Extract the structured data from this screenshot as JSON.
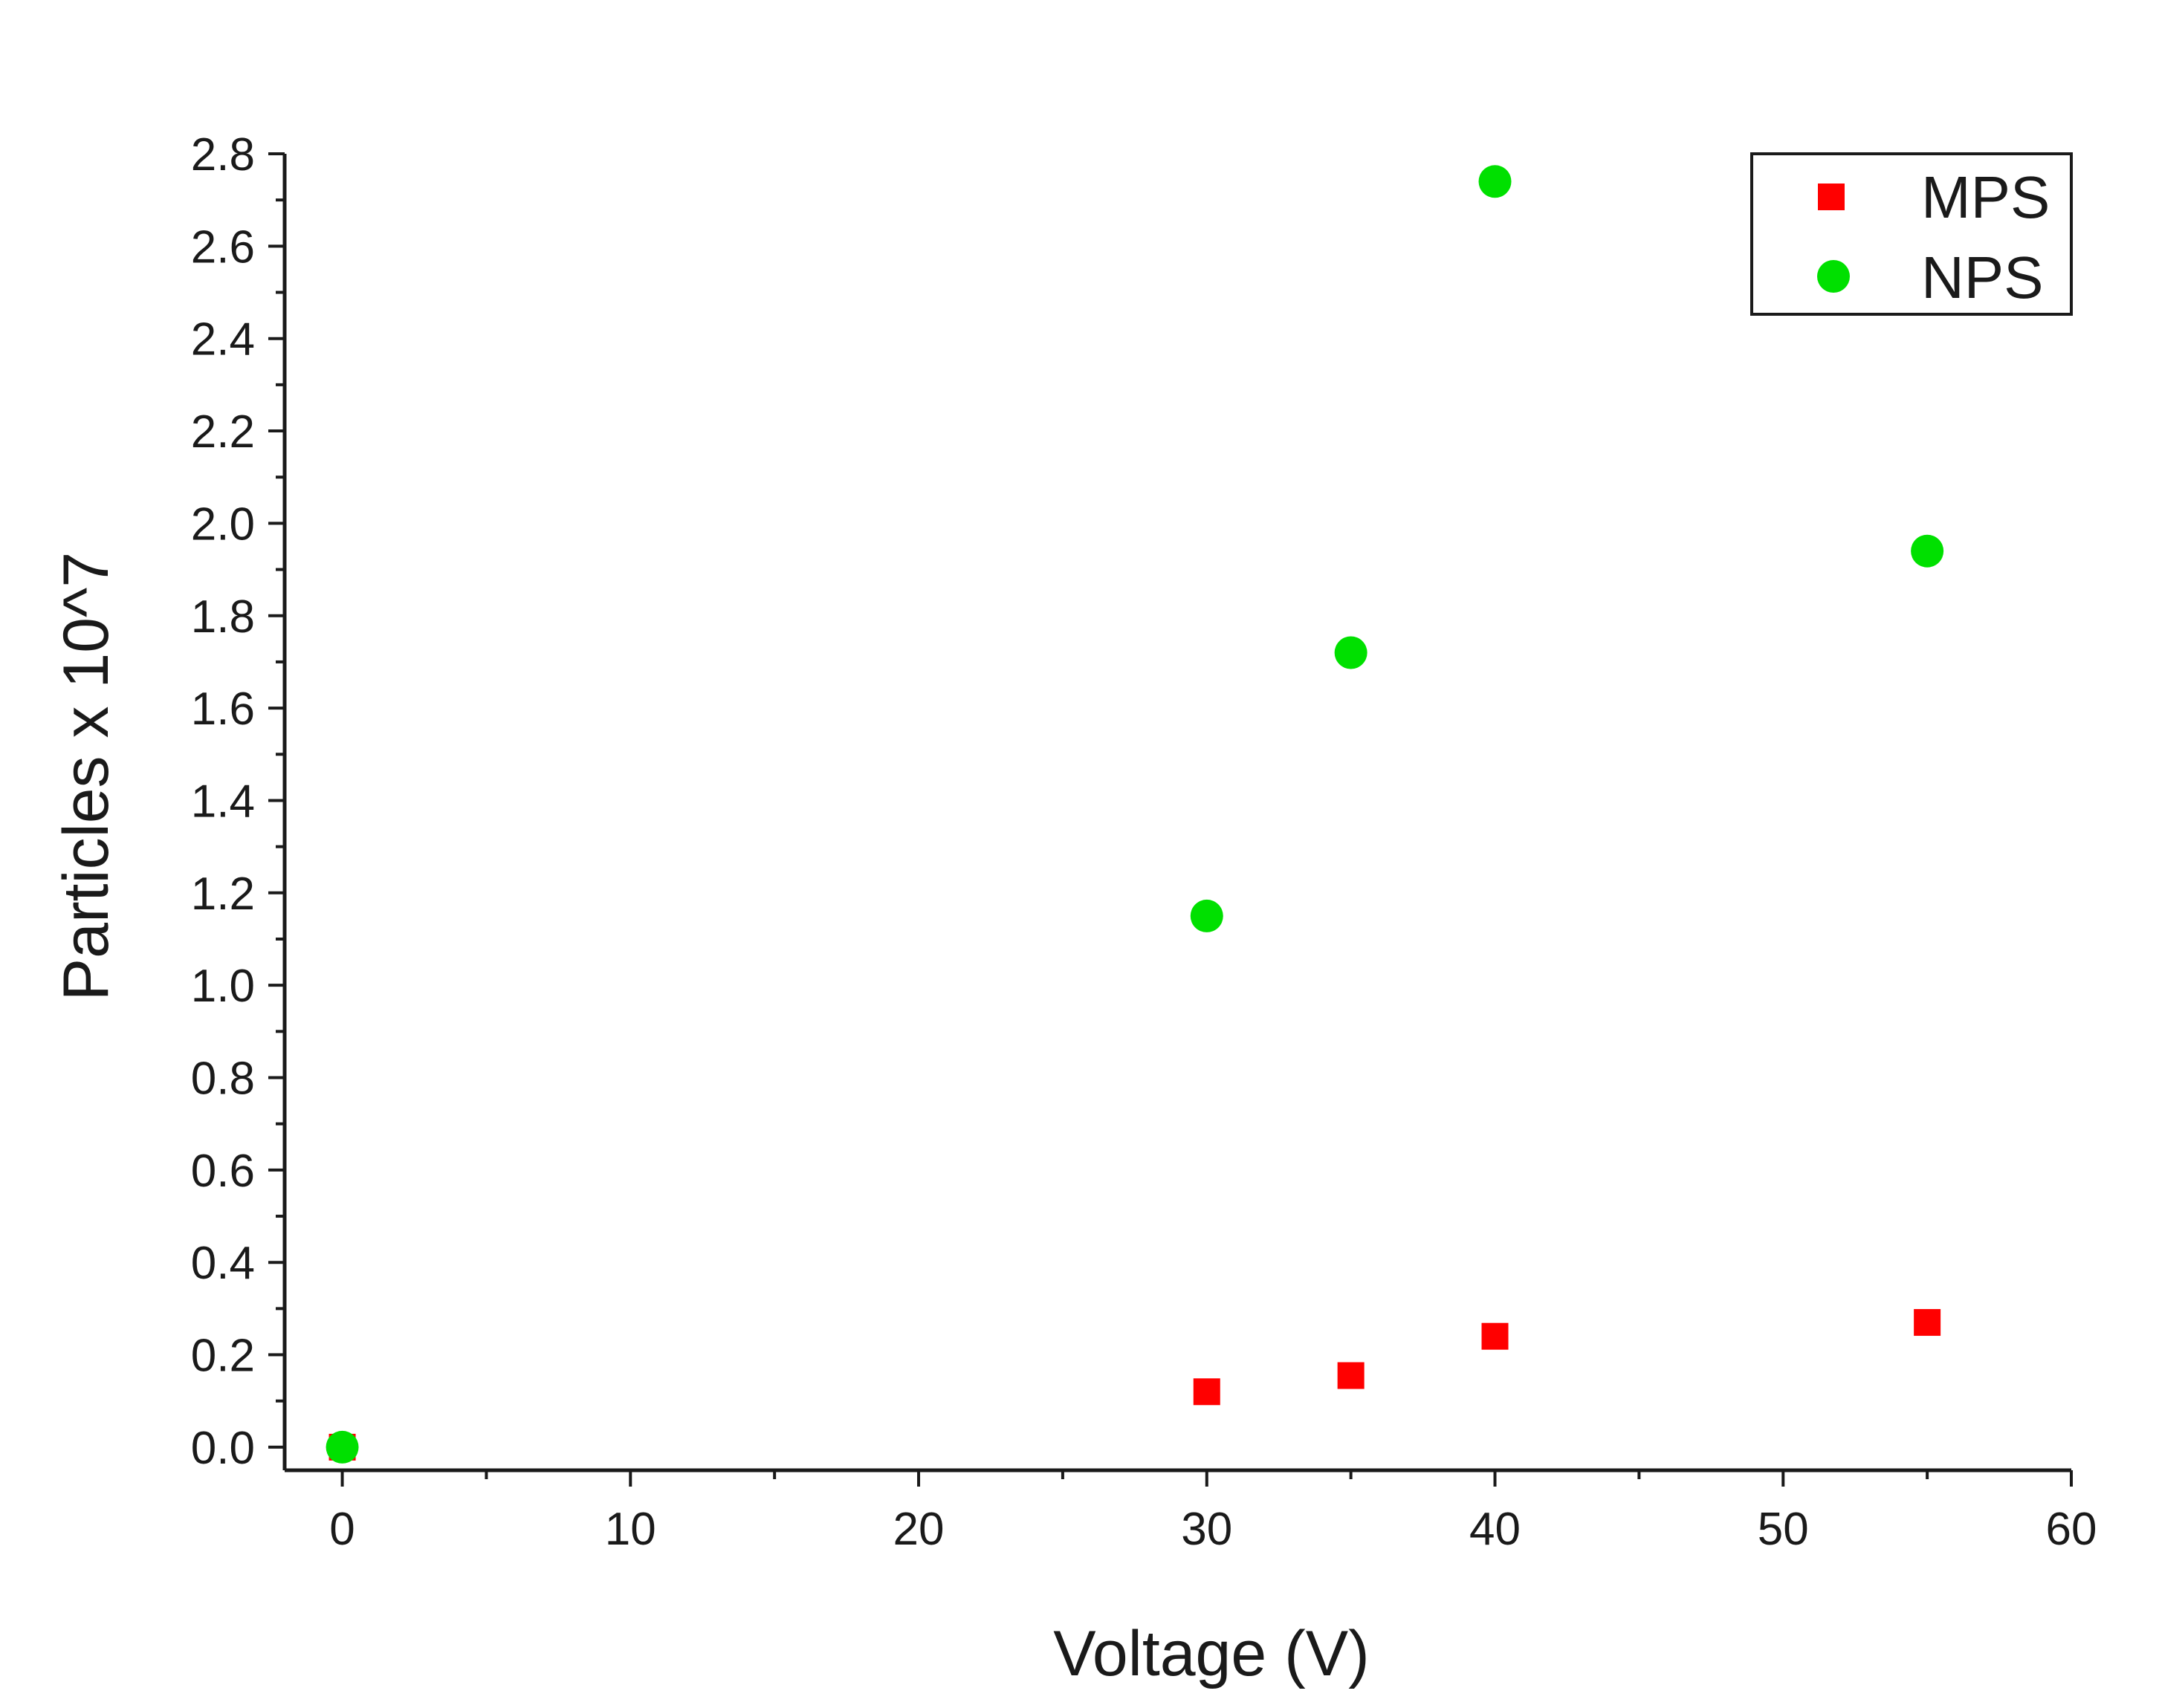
{
  "chart_data": {
    "type": "scatter",
    "title": "",
    "xlabel": "Voltage (V)",
    "ylabel": "Particles x 10^7",
    "xlim": [
      -2,
      60
    ],
    "ylim": [
      -0.05,
      2.8
    ],
    "xticks": [
      0,
      10,
      20,
      30,
      40,
      50,
      60
    ],
    "xtick_labels": [
      "0",
      "10",
      "20",
      "30",
      "40",
      "50",
      "60"
    ],
    "yticks": [
      0.0,
      0.2,
      0.4,
      0.6,
      0.8,
      1.0,
      1.2,
      1.4,
      1.6,
      1.8,
      2.0,
      2.2,
      2.4,
      2.6,
      2.8
    ],
    "ytick_labels": [
      "0.0",
      "0.2",
      "0.4",
      "0.6",
      "0.8",
      "1.0",
      "1.2",
      "1.4",
      "1.6",
      "1.8",
      "2.0",
      "2.2",
      "2.4",
      "2.6",
      "2.8"
    ],
    "grid": false,
    "legend_position": "top-right",
    "series": [
      {
        "name": "MPS",
        "marker": "square",
        "color": "#ff0000",
        "x": [
          0,
          30,
          35,
          40,
          55
        ],
        "y": [
          0.0,
          0.12,
          0.155,
          0.24,
          0.27
        ]
      },
      {
        "name": "NPS",
        "marker": "circle",
        "color": "#00e000",
        "x": [
          0,
          30,
          35,
          40,
          55
        ],
        "y": [
          0.0,
          1.15,
          1.72,
          2.74,
          1.94
        ]
      }
    ]
  }
}
